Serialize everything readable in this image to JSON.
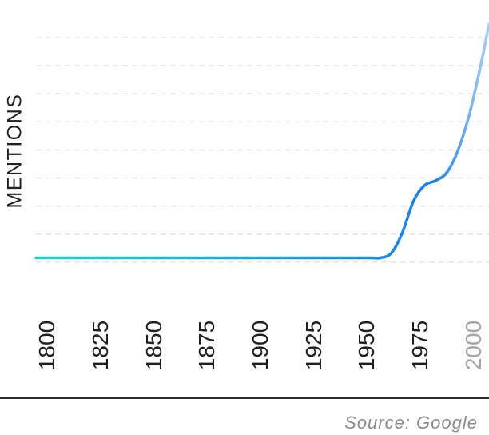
{
  "chart_data": {
    "type": "line",
    "title": "",
    "xlabel": "",
    "ylabel": "MENTIONS",
    "x_ticks": [
      "1800",
      "1825",
      "1850",
      "1875",
      "1900",
      "1925",
      "1950",
      "1975",
      "2000"
    ],
    "x_range": [
      1800,
      2004
    ],
    "y_range": [
      -1,
      7
    ],
    "grid": true,
    "series": [
      {
        "x": [
          1800,
          1825,
          1850,
          1875,
          1900,
          1925,
          1950,
          1955,
          1960,
          1965,
          1970,
          1975,
          1980,
          1985,
          1990,
          1995,
          2000,
          2004
        ],
        "y": [
          0,
          0,
          0,
          0,
          0,
          0,
          0,
          0,
          0.15,
          0.8,
          1.8,
          2.3,
          2.45,
          2.7,
          3.4,
          4.5,
          6.0,
          7.4
        ]
      }
    ],
    "line_gradient": [
      "#1ed6c6",
      "#1a7ef0",
      "#a9cdf5"
    ],
    "source": "Source: Google"
  }
}
